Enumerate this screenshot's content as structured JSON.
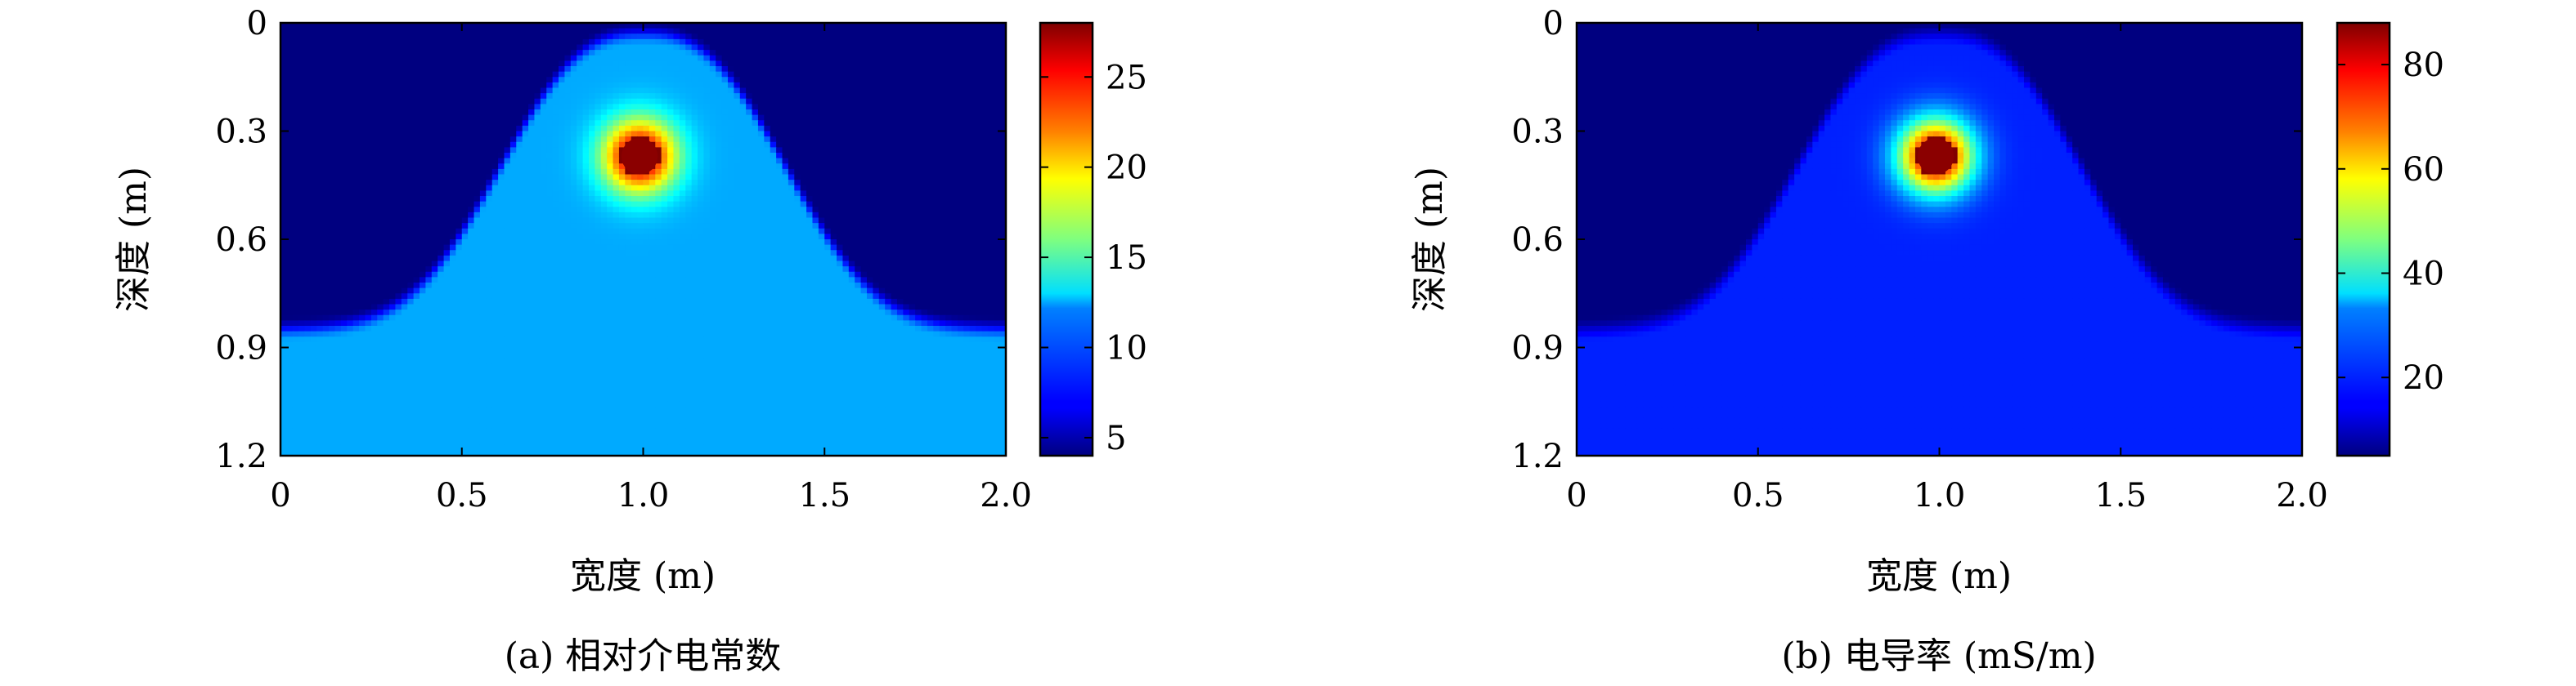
{
  "chart_data": [
    {
      "type": "heatmap",
      "caption": "(a) 相对介电常数",
      "xlabel": "宽度 (m)",
      "ylabel": "深度 (m)",
      "xlim": [
        0,
        2.0
      ],
      "ylim": [
        1.2,
        0
      ],
      "x_ticks": [
        "0",
        "0.5",
        "1.0",
        "1.5",
        "2.0"
      ],
      "y_ticks": [
        "0",
        "0.3",
        "0.6",
        "0.9",
        "1.2"
      ],
      "colorbar_ticks": [
        "5",
        "10",
        "15",
        "20",
        "25"
      ],
      "colorbar_range": [
        4,
        28
      ],
      "colormap": "jet",
      "field": {
        "background_value": 4,
        "mound_value": 11,
        "mound_left_x": 0.45,
        "mound_right_x": 1.55,
        "mound_top_depth": 0.03,
        "mound_base_depth": 0.85,
        "target_center_x": 0.99,
        "target_center_depth": 0.37,
        "target_value": 28
      }
    },
    {
      "type": "heatmap",
      "caption": "(b) 电导率 (mS/m)",
      "xlabel": "宽度 (m)",
      "ylabel": "深度 (m)",
      "xlim": [
        0,
        2.0
      ],
      "ylim": [
        1.2,
        0
      ],
      "x_ticks": [
        "0",
        "0.5",
        "1.0",
        "1.5",
        "2.0"
      ],
      "y_ticks": [
        "0",
        "0.3",
        "0.6",
        "0.9",
        "1.2"
      ],
      "colorbar_ticks": [
        "20",
        "40",
        "60",
        "80"
      ],
      "colorbar_range": [
        5,
        88
      ],
      "colormap": "jet",
      "field": {
        "background_value": 5,
        "mound_value": 18,
        "mound_left_x": 0.45,
        "mound_right_x": 1.55,
        "mound_top_depth": 0.03,
        "mound_base_depth": 0.85,
        "target_center_x": 0.99,
        "target_center_depth": 0.37,
        "target_value": 88
      }
    }
  ]
}
